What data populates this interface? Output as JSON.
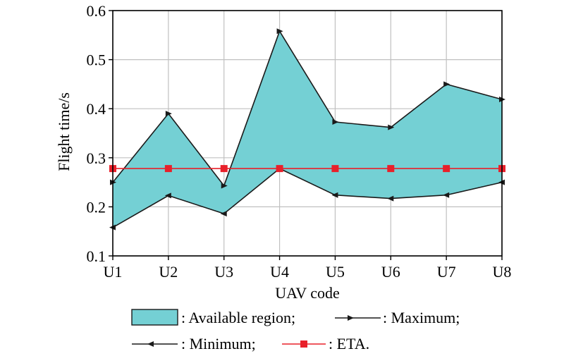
{
  "chart_data": {
    "type": "area",
    "categories": [
      "U1",
      "U2",
      "U3",
      "U4",
      "U5",
      "U6",
      "U7",
      "U8"
    ],
    "series": [
      {
        "name": "Maximum",
        "values": [
          0.25,
          0.39,
          0.243,
          0.558,
          0.373,
          0.362,
          0.45,
          0.419
        ]
      },
      {
        "name": "Minimum",
        "values": [
          0.158,
          0.223,
          0.186,
          0.278,
          0.224,
          0.217,
          0.224,
          0.25
        ]
      },
      {
        "name": "ETA.",
        "values": [
          0.278,
          0.278,
          0.278,
          0.278,
          0.278,
          0.278,
          0.278,
          0.278
        ]
      }
    ],
    "region_label": "Available region",
    "xlabel": "UAV code",
    "ylabel": "Flight time/s",
    "ylim": [
      0.1,
      0.6
    ],
    "yticks": [
      "0.1",
      "0.2",
      "0.3",
      "0.4",
      "0.5",
      "0.6"
    ],
    "grid": true,
    "legend": {
      "placement": "bottom",
      "items": [
        {
          "key": "region",
          "text": ": Available region;"
        },
        {
          "key": "max",
          "text": ": Maximum;"
        },
        {
          "key": "min",
          "text": ": Minimum;"
        },
        {
          "key": "eta",
          "text": ": ETA."
        }
      ]
    },
    "colors": {
      "region_fill": "#74d0d4",
      "line": "#1a1a1a",
      "eta": "#e8202a",
      "grid": "#c0c0c0",
      "axis": "#000000"
    }
  }
}
